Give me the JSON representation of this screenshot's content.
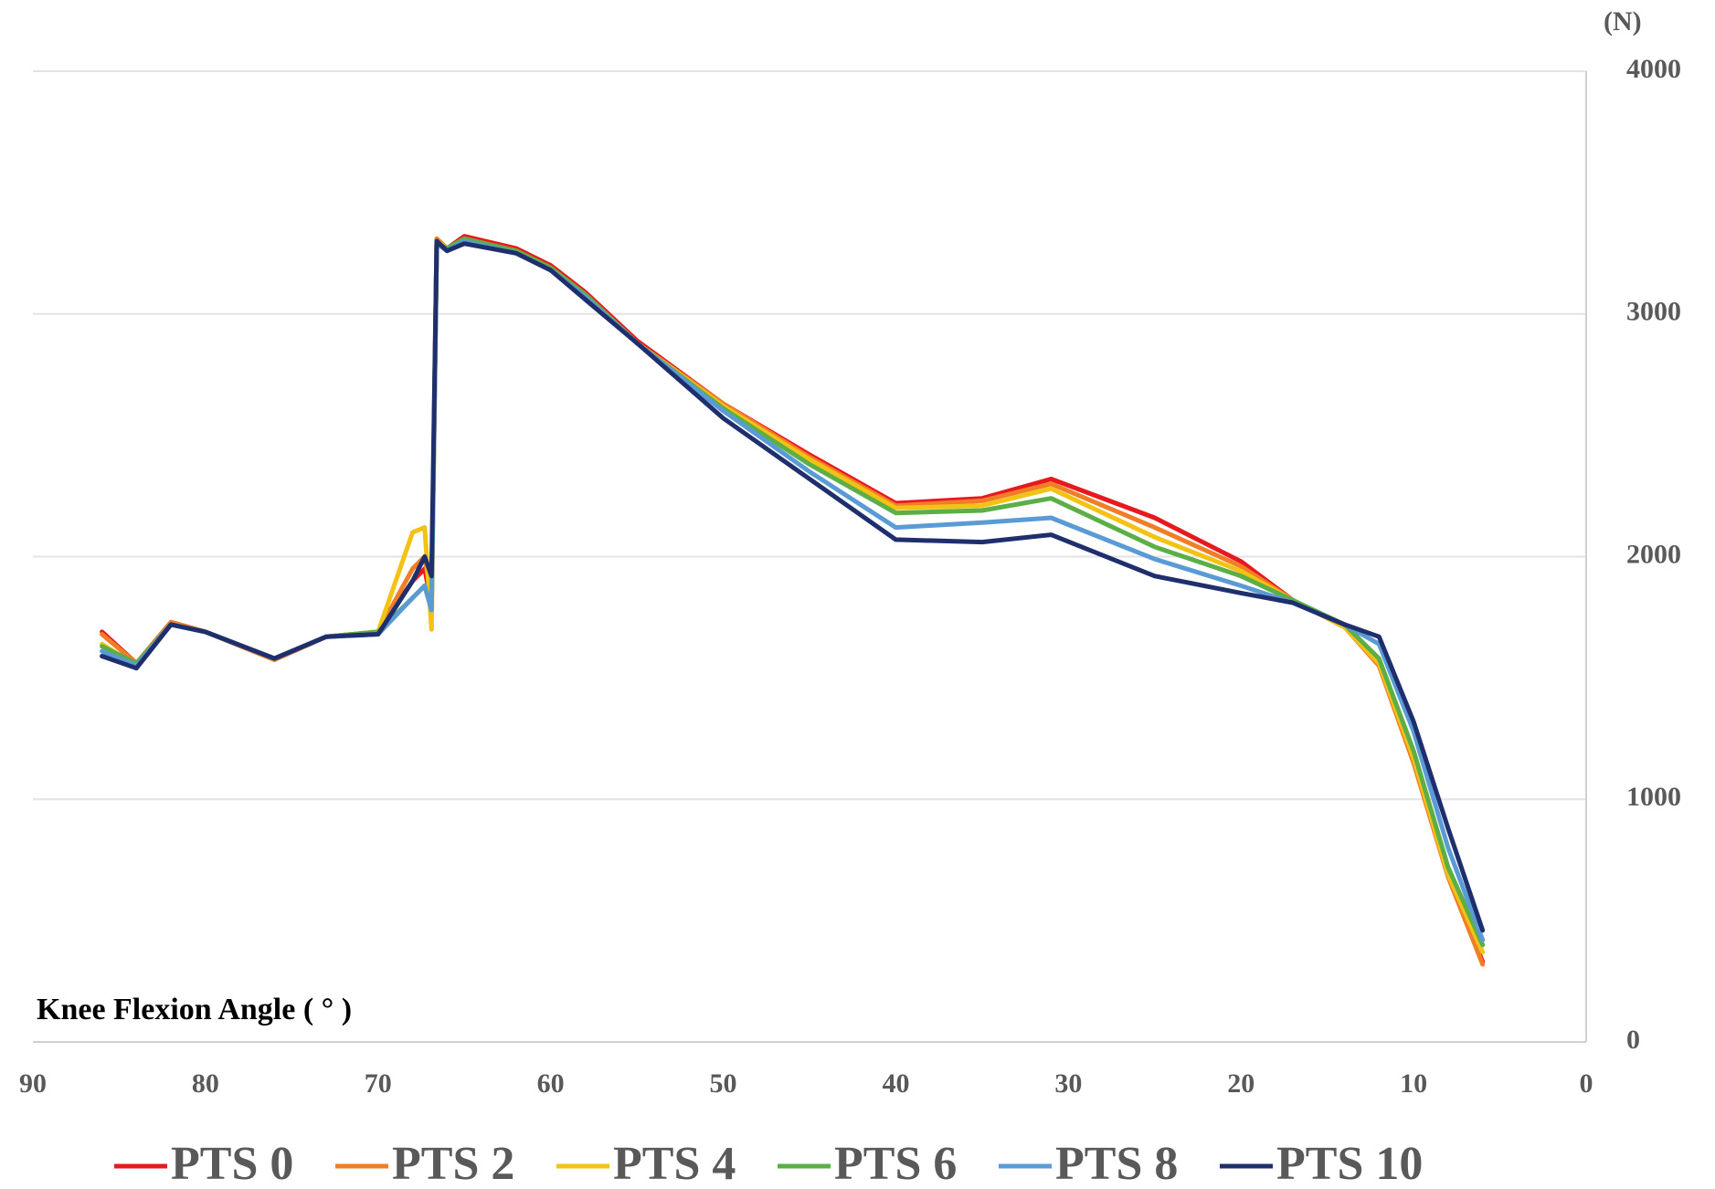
{
  "chart_data": {
    "type": "line",
    "x_label": "Knee Flexion Angle ( ° )",
    "y_label": "(N)",
    "x": [
      86,
      84,
      82,
      80,
      76,
      73,
      70,
      68,
      67.3,
      66.9,
      66.6,
      66,
      65,
      62,
      60,
      58,
      55,
      50,
      45,
      40,
      35,
      31,
      25,
      20,
      17,
      14,
      12,
      10,
      8,
      6
    ],
    "series": [
      {
        "name": "PTS 0",
        "color": "#e8191e",
        "values": [
          1690,
          1560,
          1730,
          1690,
          1575,
          1670,
          1690,
          1900,
          1950,
          1800,
          3300,
          3270,
          3320,
          3270,
          3200,
          3090,
          2890,
          2630,
          2420,
          2220,
          2240,
          2320,
          2160,
          1980,
          1820,
          1710,
          1560,
          1180,
          700,
          330
        ]
      },
      {
        "name": "PTS 2",
        "color": "#f07e26",
        "values": [
          1680,
          1560,
          1730,
          1690,
          1575,
          1670,
          1690,
          1950,
          2000,
          1820,
          3310,
          3270,
          3310,
          3260,
          3190,
          3080,
          2880,
          2630,
          2410,
          2210,
          2230,
          2300,
          2120,
          1960,
          1820,
          1710,
          1550,
          1150,
          680,
          320
        ]
      },
      {
        "name": "PTS 4",
        "color": "#f2c314",
        "values": [
          1640,
          1550,
          1720,
          1690,
          1580,
          1670,
          1690,
          2100,
          2120,
          1700,
          3300,
          3270,
          3310,
          3260,
          3190,
          3080,
          2880,
          2620,
          2400,
          2200,
          2210,
          2280,
          2080,
          1940,
          1820,
          1710,
          1560,
          1170,
          690,
          370
        ]
      },
      {
        "name": "PTS 6",
        "color": "#5cae46",
        "values": [
          1630,
          1560,
          1720,
          1690,
          1580,
          1670,
          1690,
          1830,
          1880,
          1780,
          3290,
          3270,
          3310,
          3260,
          3190,
          3080,
          2880,
          2610,
          2380,
          2180,
          2190,
          2240,
          2040,
          1920,
          1820,
          1720,
          1580,
          1200,
          720,
          400
        ]
      },
      {
        "name": "PTS 8",
        "color": "#5b9bd5",
        "values": [
          1610,
          1550,
          1720,
          1690,
          1580,
          1670,
          1680,
          1830,
          1880,
          1780,
          3290,
          3260,
          3300,
          3250,
          3180,
          3070,
          2880,
          2600,
          2350,
          2120,
          2140,
          2160,
          1990,
          1880,
          1810,
          1720,
          1640,
          1280,
          800,
          420
        ]
      },
      {
        "name": "PTS 10",
        "color": "#1f2f6e",
        "values": [
          1590,
          1540,
          1720,
          1690,
          1580,
          1670,
          1680,
          1900,
          2000,
          1920,
          3300,
          3260,
          3290,
          3250,
          3180,
          3060,
          2880,
          2570,
          2320,
          2070,
          2060,
          2090,
          1920,
          1850,
          1810,
          1720,
          1670,
          1320,
          880,
          460
        ]
      }
    ],
    "xlim": [
      90,
      0
    ],
    "xticks": [
      90,
      80,
      70,
      60,
      50,
      40,
      30,
      20,
      10,
      0
    ],
    "ylim": [
      0,
      4000
    ],
    "yticks": [
      0,
      1000,
      2000,
      3000,
      4000
    ],
    "grid": true,
    "legend": "bottom"
  }
}
